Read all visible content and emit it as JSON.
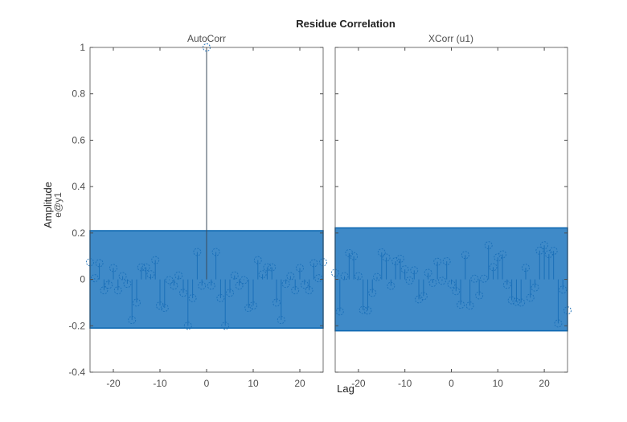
{
  "chart_data": [
    {
      "type": "stem",
      "title": "Residue Correlation",
      "subtitle": "AutoCorr",
      "xlabel": "Lag",
      "ylabel": "Amplitude",
      "ylabel2": "e@y1",
      "xlim": [
        -25,
        25
      ],
      "ylim": [
        -0.4,
        1
      ],
      "xticks": [
        -20,
        -10,
        0,
        10,
        20
      ],
      "yticks": [
        -0.4,
        -0.2,
        0,
        0.2,
        0.4,
        0.6,
        0.8,
        1
      ],
      "ytick_labels": [
        "-0.4",
        "-0.2",
        "0",
        "0.2",
        "0.4",
        "0.6",
        "0.8",
        "1"
      ],
      "confidence_bound": 0.21,
      "x": [
        -25,
        -24,
        -23,
        -22,
        -21,
        -20,
        -19,
        -18,
        -17,
        -16,
        -15,
        -14,
        -13,
        -12,
        -11,
        -10,
        -9,
        -8,
        -7,
        -6,
        -5,
        -4,
        -3,
        -2,
        -1,
        0,
        1,
        2,
        3,
        4,
        5,
        6,
        7,
        8,
        9,
        10,
        11,
        12,
        13,
        14,
        15,
        16,
        17,
        18,
        19,
        20,
        21,
        22,
        23,
        24,
        25
      ],
      "values": [
        0.074,
        0.005,
        0.07,
        -0.047,
        -0.023,
        0.049,
        -0.047,
        0.014,
        -0.019,
        -0.175,
        -0.1,
        0.052,
        0.052,
        0.022,
        0.083,
        -0.113,
        -0.123,
        -0.003,
        -0.027,
        0.017,
        -0.058,
        -0.2,
        -0.081,
        0.118,
        -0.027,
        1,
        -0.027,
        0.118,
        -0.081,
        -0.2,
        -0.058,
        0.017,
        -0.027,
        -0.003,
        -0.123,
        -0.113,
        0.083,
        0.022,
        0.052,
        0.052,
        -0.1,
        -0.175,
        -0.019,
        0.014,
        -0.047,
        0.049,
        -0.023,
        -0.047,
        0.07,
        0.005,
        0.074
      ]
    },
    {
      "type": "stem",
      "subtitle": "XCorr (u1)",
      "xlim": [
        -25,
        25
      ],
      "ylim": [
        -0.4,
        1
      ],
      "xticks": [
        -20,
        -10,
        0,
        10,
        20
      ],
      "confidence_bound": 0.222,
      "x": [
        -25,
        -24,
        -23,
        -22,
        -21,
        -20,
        -19,
        -18,
        -17,
        -16,
        -15,
        -14,
        -13,
        -12,
        -11,
        -10,
        -9,
        -8,
        -7,
        -6,
        -5,
        -4,
        -3,
        -2,
        -1,
        0,
        1,
        2,
        3,
        4,
        5,
        6,
        7,
        8,
        9,
        10,
        11,
        12,
        13,
        14,
        15,
        16,
        17,
        18,
        19,
        20,
        21,
        22,
        23,
        24,
        25
      ],
      "values": [
        0.028,
        -0.138,
        0.014,
        0.113,
        0.1,
        0.014,
        -0.132,
        -0.134,
        -0.058,
        0.01,
        0.116,
        0.094,
        -0.028,
        0.078,
        0.089,
        0.043,
        -0.005,
        0.039,
        -0.086,
        -0.072,
        0.028,
        -0.015,
        0.076,
        -0.006,
        0.078,
        -0.021,
        -0.051,
        -0.109,
        0.105,
        -0.113,
        0.003,
        -0.069,
        0.003,
        0.147,
        0.053,
        0.095,
        0.108,
        -0.023,
        -0.09,
        -0.097,
        -0.1,
        0.05,
        -0.079,
        -0.035,
        0.124,
        0.147,
        0.109,
        0.123,
        -0.19,
        -0.044,
        -0.134
      ]
    }
  ],
  "colors": {
    "band_fill": "#3f8ac8",
    "band_edge": "#0b66b0",
    "stem": "#1a6fb8",
    "axis": "#4d4d4d"
  }
}
